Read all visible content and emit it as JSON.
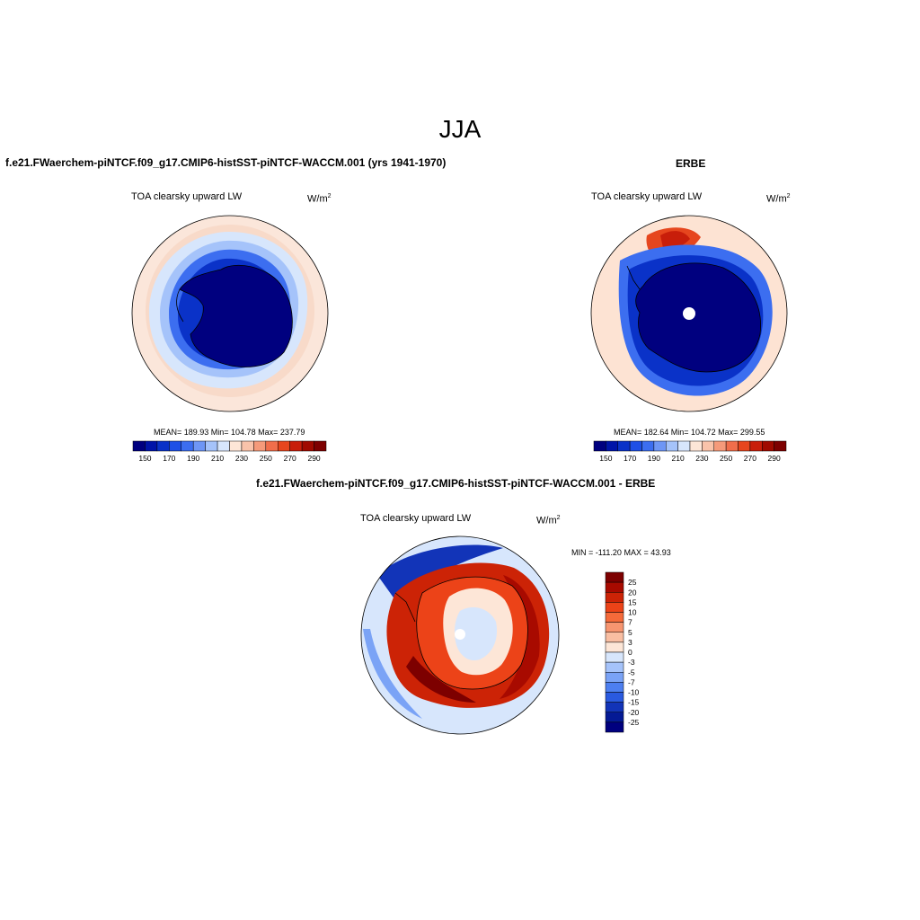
{
  "main_title": "JJA",
  "panels": [
    {
      "id": "model",
      "title": "f.e21.FWaerchem-piNTCF.f09_g17.CMIP6-histSST-piNTCF-WACCM.001 (yrs 1941-1970)",
      "variable": "TOA clearsky upward LW",
      "units_base": "W/m",
      "units_exp": "2",
      "stats": "MEAN= 189.93  Min= 104.78  Max= 237.79",
      "colorbar_labels": [
        "150",
        "170",
        "190",
        "210",
        "230",
        "250",
        "270",
        "290"
      ]
    },
    {
      "id": "obs",
      "title": "ERBE",
      "variable": "TOA clearsky upward LW",
      "units_base": "W/m",
      "units_exp": "2",
      "stats": "MEAN= 182.64  Min= 104.72  Max= 299.55",
      "colorbar_labels": [
        "150",
        "170",
        "190",
        "210",
        "230",
        "250",
        "270",
        "290"
      ]
    },
    {
      "id": "diff",
      "title": "f.e21.FWaerchem-piNTCF.f09_g17.CMIP6-histSST-piNTCF-WACCM.001 - ERBE",
      "variable": "TOA clearsky upward LW",
      "units_base": "W/m",
      "units_exp": "2",
      "stats": "MIN = -111.20 MAX =  43.93",
      "colorbar_labels": [
        "25",
        "20",
        "15",
        "10",
        "7",
        "5",
        "3",
        "0",
        "-3",
        "-5",
        "-7",
        "-10",
        "-15",
        "-20",
        "-25"
      ]
    }
  ],
  "colors": {
    "abs_scale": [
      "#00007f",
      "#0014a8",
      "#0a32c8",
      "#1e50e6",
      "#3c6ef0",
      "#6e96f5",
      "#a5c3fa",
      "#d7e6fc",
      "#fde6d7",
      "#f9c3aa",
      "#f59a7a",
      "#f06e4b",
      "#e6461e",
      "#c81e0a",
      "#a00a00",
      "#7d0000"
    ],
    "diff_scale": [
      "#7d0000",
      "#a80a00",
      "#cc2306",
      "#ec4318",
      "#f56a3a",
      "#f79570",
      "#f9bea2",
      "#fde6d7",
      "#d7e6fc",
      "#a5c3fa",
      "#7aa3f6",
      "#4d7ff0",
      "#2a5ae0",
      "#1234b8",
      "#041a95",
      "#00007f"
    ]
  }
}
